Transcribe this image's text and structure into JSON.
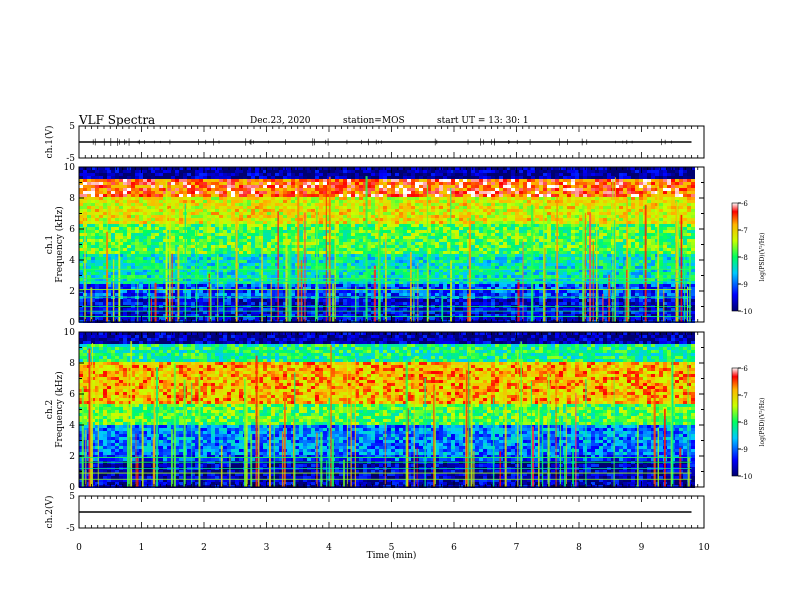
{
  "header": {
    "title": "VLF Spectra",
    "date": "Dec.23, 2020",
    "station": "station=MOS",
    "start": "start  UT  =   13: 30: 1"
  },
  "colors": {
    "background": "#00007a",
    "accent_red": "#ff0000",
    "accent_green": "#00ff40",
    "frame": "#000000"
  },
  "chart_data": [
    {
      "type": "line",
      "panel": "ch1-waveform",
      "ylabel": "ch.1(V)",
      "ylim": [
        -5,
        5
      ],
      "yticks": [
        "5",
        "-5"
      ],
      "xlim": [
        0,
        10
      ],
      "x": [
        0,
        9.8
      ],
      "series": [
        {
          "values": [
            0,
            0
          ]
        }
      ]
    },
    {
      "type": "heatmap",
      "panel": "ch1-spectrogram",
      "ylabel": "ch.1\nFrequency (kHz)",
      "ylim": [
        0,
        10
      ],
      "yticks": [
        "0",
        "2",
        "4",
        "6",
        "8",
        "10"
      ],
      "xlim": [
        0,
        10
      ],
      "data_xmax": 9.8,
      "colorbar": {
        "label": "log(PSD)(V²/Hz)",
        "range": [
          -10,
          -6
        ],
        "ticks": [
          "-6",
          "-7",
          "-8",
          "-9",
          "-10"
        ]
      }
    },
    {
      "type": "heatmap",
      "panel": "ch2-spectrogram",
      "ylabel": "ch.2\nFrequency (kHz)",
      "ylim": [
        0,
        10
      ],
      "yticks": [
        "0",
        "2",
        "4",
        "6",
        "8",
        "10"
      ],
      "xlim": [
        0,
        10
      ],
      "data_xmax": 9.8,
      "colorbar": {
        "label": "log(PSD)(V²/Hz)",
        "range": [
          -10,
          -6
        ],
        "ticks": [
          "-6",
          "-7",
          "-8",
          "-9",
          "-10"
        ]
      }
    },
    {
      "type": "line",
      "panel": "ch2-waveform",
      "ylabel": "ch.2(V)",
      "ylim": [
        -5,
        5
      ],
      "yticks": [
        "5",
        "-5"
      ],
      "xlim": [
        0,
        10
      ],
      "x": [
        0,
        9.8
      ],
      "series": [
        {
          "values": [
            0,
            0
          ]
        }
      ]
    }
  ],
  "xaxis": {
    "label": "Time (min)",
    "ticks": [
      "0",
      "1",
      "2",
      "3",
      "4",
      "5",
      "6",
      "7",
      "8",
      "9",
      "10"
    ]
  }
}
